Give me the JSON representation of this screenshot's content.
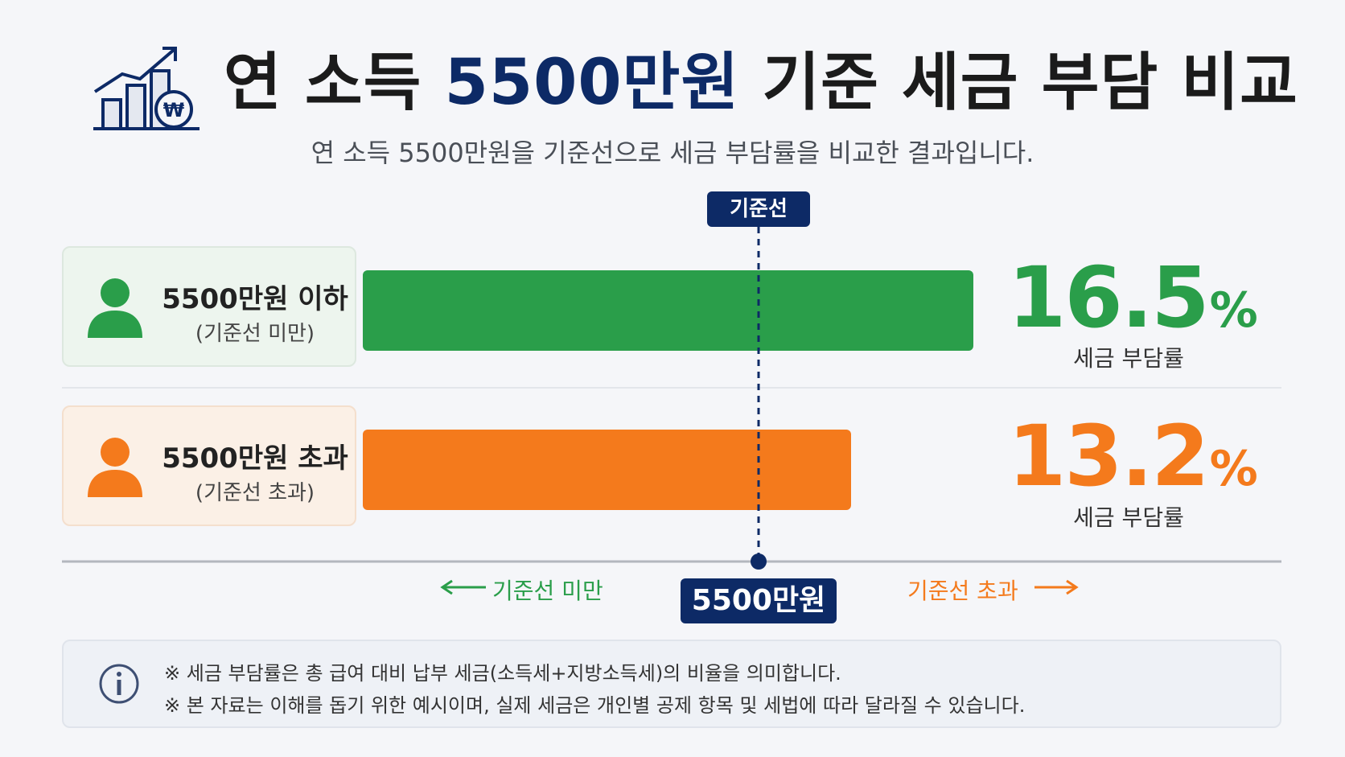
{
  "header": {
    "title_prefix": "연 소득 ",
    "title_highlight": "5500만원",
    "title_suffix": " 기준 세금 부담 비교",
    "subtitle": "연 소득 5500만원을 기준선으로 세금 부담률을 비교한 결과입니다.",
    "icon": "chart-growth-won-icon"
  },
  "colors": {
    "navy": "#0d2a66",
    "green": "#2a9e4a",
    "orange": "#f47a1c"
  },
  "baseline": {
    "top_label": "기준선",
    "bottom_label": "5500만원",
    "left_direction": "기준선 미만",
    "right_direction": "기준선 초과"
  },
  "rows": [
    {
      "label": "5500만원 이하",
      "sublabel": "(기준선 미만)",
      "value_text": "16.5",
      "unit": "%",
      "caption": "세금 부담률",
      "icon": "person-icon"
    },
    {
      "label": "5500만원 초과",
      "sublabel": "(기준선 초과)",
      "value_text": "13.2",
      "unit": "%",
      "caption": "세금 부담률",
      "icon": "person-icon"
    }
  ],
  "chart_data": {
    "type": "bar",
    "orientation": "horizontal",
    "categories": [
      "5500만원 이하",
      "5500만원 초과"
    ],
    "values": [
      16.5,
      13.2
    ],
    "unit": "%",
    "colors": [
      "#2a9e4a",
      "#f47a1c"
    ],
    "title": "연 소득 5500만원 기준 세금 부담 비교",
    "xlabel": "",
    "ylabel": "",
    "grid": false,
    "legend": "none"
  },
  "notes": {
    "icon": "info-icon",
    "lines": [
      "※ 세금 부담률은 총 급여 대비 납부 세금(소득세+지방소득세)의 비율을 의미합니다.",
      "※ 본 자료는 이해를 돕기 위한 예시이며, 실제 세금은 개인별 공제 항목 및 세법에 따라 달라질 수 있습니다."
    ]
  }
}
